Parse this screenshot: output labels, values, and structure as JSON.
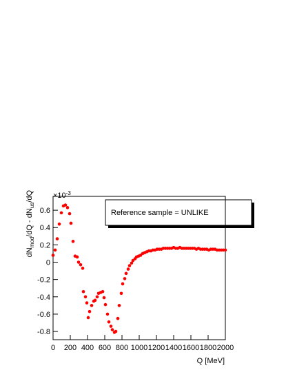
{
  "chart_data": {
    "type": "scatter",
    "xlabel": "Q [MeV]",
    "ylabel": [
      "dN",
      "mod",
      "/dQ - dN",
      "us",
      "/dQ"
    ],
    "axis_multiplier": {
      "base": "×10",
      "exponent": "-3"
    },
    "legend_text": "Reference sample = UNLIKE",
    "color": "#ff0000",
    "xlim": [
      0,
      2000
    ],
    "xticks": [
      0,
      200,
      400,
      600,
      800,
      1000,
      1200,
      1400,
      1600,
      1800,
      2000
    ],
    "ylim": [
      -0.895,
      0.76
    ],
    "yticks": [
      -0.8,
      -0.6,
      -0.4,
      -0.2,
      0,
      0.2,
      0.4,
      0.6
    ],
    "x": [
      0,
      24,
      48,
      72,
      96,
      120,
      144,
      168,
      192,
      208,
      232,
      256,
      280,
      296,
      320,
      344,
      352,
      376,
      392,
      408,
      424,
      448,
      472,
      488,
      512,
      528,
      552,
      576,
      592,
      608,
      632,
      648,
      672,
      688,
      712,
      728,
      752,
      768,
      792,
      808,
      832,
      848,
      872,
      888,
      912,
      928,
      952,
      968,
      992,
      1016,
      1040,
      1064,
      1088,
      1112,
      1136,
      1160,
      1184,
      1208,
      1232,
      1256,
      1280,
      1304,
      1328,
      1352,
      1376,
      1400,
      1424,
      1448,
      1472,
      1496,
      1520,
      1544,
      1568,
      1592,
      1616,
      1640,
      1664,
      1688,
      1712,
      1736,
      1760,
      1784,
      1808,
      1832,
      1856,
      1880,
      1904,
      1928,
      1952,
      1976,
      2000
    ],
    "values": [
      0.08,
      0.14,
      0.27,
      0.44,
      0.57,
      0.65,
      0.66,
      0.63,
      0.56,
      0.45,
      0.24,
      0.07,
      0.06,
      0.0,
      -0.03,
      -0.07,
      -0.34,
      -0.4,
      -0.47,
      -0.64,
      -0.57,
      -0.5,
      -0.45,
      -0.44,
      -0.4,
      -0.36,
      -0.35,
      -0.34,
      -0.41,
      -0.49,
      -0.6,
      -0.69,
      -0.74,
      -0.78,
      -0.81,
      -0.8,
      -0.65,
      -0.5,
      -0.36,
      -0.25,
      -0.19,
      -0.13,
      -0.08,
      -0.04,
      -0.01,
      0.02,
      0.04,
      0.06,
      0.07,
      0.08,
      0.1,
      0.11,
      0.12,
      0.13,
      0.13,
      0.14,
      0.14,
      0.15,
      0.15,
      0.15,
      0.16,
      0.16,
      0.16,
      0.16,
      0.16,
      0.17,
      0.16,
      0.16,
      0.17,
      0.16,
      0.16,
      0.16,
      0.16,
      0.16,
      0.16,
      0.16,
      0.15,
      0.16,
      0.15,
      0.15,
      0.15,
      0.15,
      0.14,
      0.15,
      0.15,
      0.15,
      0.14,
      0.14,
      0.14,
      0.14,
      0.14
    ]
  }
}
